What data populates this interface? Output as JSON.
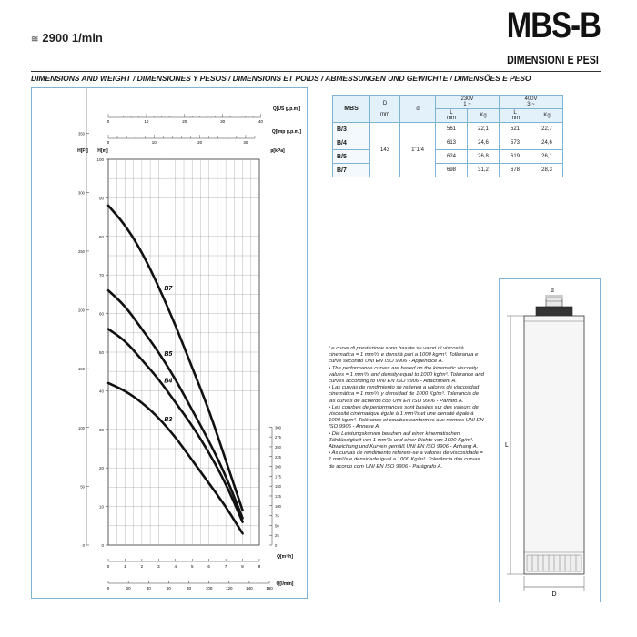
{
  "header": {
    "speed_symbol": "≅",
    "speed": "2900 1/min",
    "model": "MBS-B",
    "subtitle": "DIMENSIONI E PESI",
    "bar": "DIMENSIONS AND WEIGHT / DIMENSIONES Y PESOS / DIMENSIONS ET POIDS / ABMESSUNGEN UND GEWICHTE / DIMENSÕES E PESO"
  },
  "chart_data": {
    "type": "line",
    "xlabel": "Q[m³/h]",
    "x_ticks": [
      "0",
      "1",
      "2",
      "3",
      "4",
      "5",
      "6",
      "7",
      "8",
      "9"
    ],
    "top_scales": [
      {
        "label": "Q[US g.p.m.]",
        "ticks": [
          "0",
          "10",
          "20",
          "30",
          "40"
        ]
      },
      {
        "label": "Q[Imp g.p.m.]",
        "ticks": [
          "0",
          "10",
          "20",
          "30"
        ]
      }
    ],
    "bottom_scales": [
      {
        "label": "Q[l/min]",
        "ticks": [
          "0",
          "20",
          "40",
          "60",
          "80",
          "100",
          "120",
          "140",
          "160"
        ]
      }
    ],
    "left_scales": [
      {
        "label": "H[m]",
        "ticks": [
          "0",
          "10",
          "20",
          "30",
          "40",
          "50",
          "60",
          "70",
          "80",
          "90",
          "100"
        ]
      },
      {
        "label": "H[Ft]",
        "ticks": [
          "0",
          "50",
          "100",
          "150",
          "200",
          "250",
          "300",
          "350",
          "400",
          "450",
          "500",
          "550",
          "600",
          "650",
          "700",
          "750",
          "800",
          "850",
          "900",
          "950"
        ]
      }
    ],
    "right_scales": [
      {
        "label": "p[kPa]",
        "ticks": [
          "0",
          "25",
          "50",
          "75",
          "100",
          "125",
          "150",
          "175",
          "200",
          "225",
          "250",
          "275",
          "300"
        ]
      }
    ],
    "xlim": [
      0,
      9
    ],
    "ylim": [
      0,
      100
    ],
    "series": [
      {
        "name": "B7",
        "x": [
          0,
          1,
          2,
          3,
          4,
          5,
          6,
          7,
          8
        ],
        "y": [
          88,
          83,
          76,
          67,
          57,
          46,
          35,
          22,
          9
        ]
      },
      {
        "name": "B5",
        "x": [
          0,
          1,
          2,
          3,
          4,
          5,
          6,
          7,
          8
        ],
        "y": [
          66,
          62,
          56,
          50,
          43,
          35,
          27,
          18,
          7
        ]
      },
      {
        "name": "B4",
        "x": [
          0,
          1,
          2,
          3,
          4,
          5,
          6,
          7,
          8
        ],
        "y": [
          56,
          53,
          48,
          43,
          37,
          31,
          24,
          16,
          6
        ]
      },
      {
        "name": "B3",
        "x": [
          0,
          1,
          2,
          3,
          4,
          5,
          6,
          7,
          8
        ],
        "y": [
          42,
          40,
          37,
          33,
          28,
          22,
          16,
          10,
          3
        ]
      }
    ],
    "grid": true
  },
  "table": {
    "head": {
      "model": "MBS",
      "d_cap": "D",
      "d_unit": "mm",
      "dd": "d",
      "v1": "230V",
      "v1b": "1 ~",
      "v2": "400V",
      "v2b": "3 ~",
      "l": "L",
      "lmm": "mm",
      "kg": "Kg"
    },
    "shared_d": "143",
    "shared_dd": "1\"1/4",
    "rows": [
      {
        "model": "B/3",
        "l1": "561",
        "kg1": "22,1",
        "l2": "521",
        "kg2": "22,7"
      },
      {
        "model": "B/4",
        "l1": "613",
        "kg1": "24,6",
        "l2": "573",
        "kg2": "24,6"
      },
      {
        "model": "B/5",
        "l1": "624",
        "kg1": "26,8",
        "l2": "619",
        "kg2": "26,1"
      },
      {
        "model": "B/7",
        "l1": "698",
        "kg1": "31,2",
        "l2": "678",
        "kg2": "28,3"
      }
    ]
  },
  "notes": [
    "Le curve di prestazione sono basate su valori di viscosità cinematica = 1 mm²/s e densità pari a 1000 kg/m³. Tolleranza e curve secondo UNI EN ISO 9906 - Appendice A.",
    "• The performance curves are based on the kinematic viscosity values = 1 mm²/s and density equal to 1000 kg/m³. Tolerance and curves according to UNI EN ISO 9906 - Attachment A.",
    "• Las curvas de rendimiento se refieren a valores de viscosidad cinemática = 1 mm²/s y densidad de 1000 Kg/m³. Tolerancia de las curvas de acuerdo con UNI EN ISO 9906 - Párrafo A.",
    "• Les courbes de performances sont basées sur des valeurs de viscosité cinématique égale à 1 mm²/s et une densité égale à 1000 kg/m³. Tolérance et courbes conformes aux normes UNI EN ISO 9906 - Annexe A.",
    "• Die Leistungskurven beruhen auf einer kinematischen Zähflüssigkeit von 1 mm²/s und einer Dichte von 1000 Kg/m³. Abweichung und Kurven gemäß UNI EN ISO 9906 - Anhang A.",
    "• As curvas de rendimento referem-se a valores de viscosidade = 1 mm²/s e densidade igual a 1000 Kg/m³. Tolerância das curvas de acordo com UNI EN ISO 9906 - Parágrafo A."
  ],
  "drawing": {
    "d_label": "d",
    "l_label": "L",
    "D_label": "D"
  }
}
